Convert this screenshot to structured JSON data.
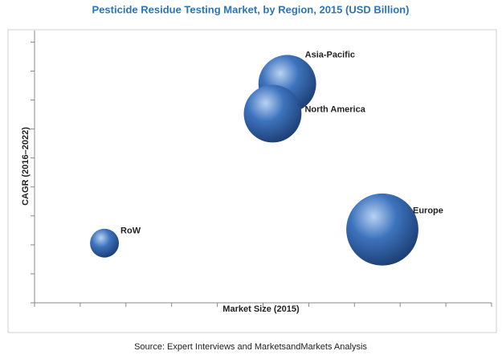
{
  "chart_data": {
    "type": "bubble",
    "title": "Pesticide Residue Testing Market, by Region, 2015 (USD Billion)",
    "x_label": "Market Size (2015)",
    "y_label": "CAGR (2016–2022)",
    "source": "Source: Expert Interviews and MarketsandMarkets Analysis",
    "categories": [
      "RoW",
      "Asia-Pacific",
      "North America",
      "Europe"
    ],
    "x": [
      1.53,
      5.53,
      5.21,
      7.61
    ],
    "values": [
      2.06,
      7.56,
      6.53,
      2.53
    ],
    "sizes": [
      1.6,
      6.4,
      6.4,
      10
    ],
    "color": "#3d73bd",
    "xlim": [
      0,
      10
    ],
    "xticks": [
      0,
      1,
      2,
      3,
      4,
      5,
      6,
      7,
      8,
      9,
      10
    ],
    "ylim": [
      0,
      9.4
    ],
    "yticks": [
      0,
      1,
      2,
      3,
      4,
      5,
      6,
      7,
      8,
      9
    ]
  }
}
